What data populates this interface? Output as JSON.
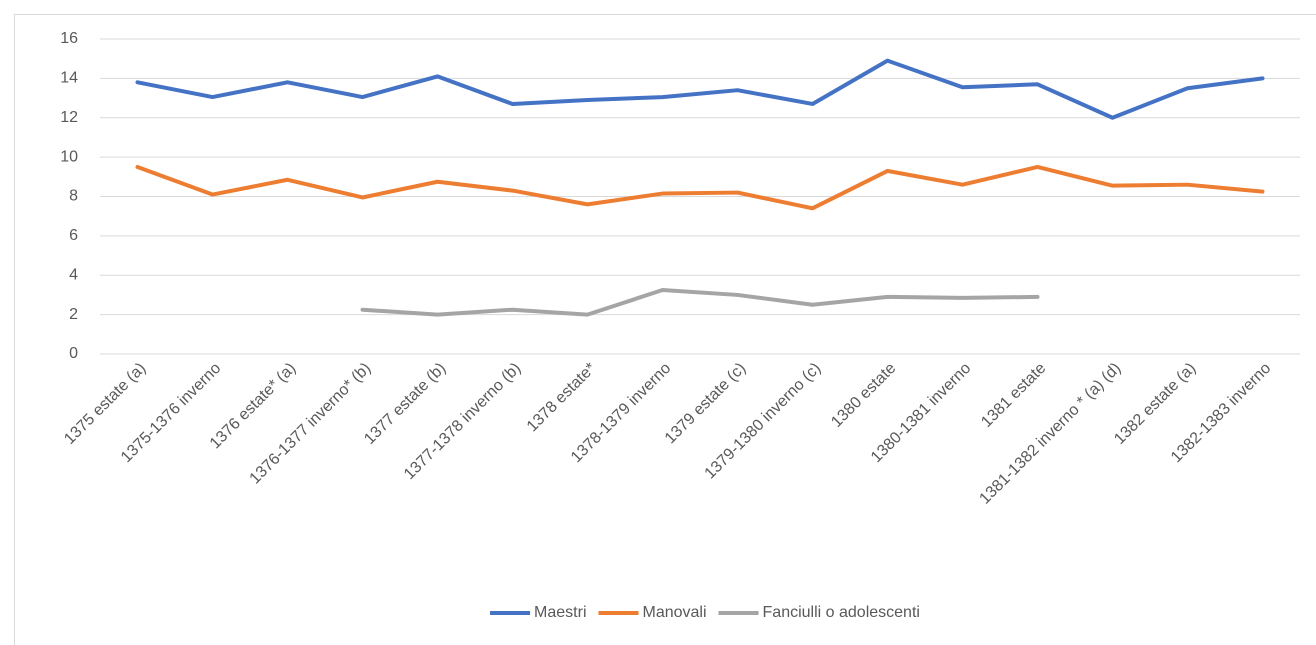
{
  "chart_data": {
    "type": "line",
    "categories": [
      "1375 estate (a)",
      "1375-1376 inverno",
      "1376 estate* (a)",
      "1376-1377 inverno* (b)",
      "1377 estate (b)",
      "1377-1378 inverno (b)",
      "1378 estate*",
      "1378-1379 inverno",
      "1379 estate (c)",
      "1379-1380 inverno (c)",
      "1380 estate",
      "1380-1381 inverno",
      "1381 estate",
      "1381-1382 inverno * (a) (d)",
      "1382 estate (a)",
      "1382-1383 inverno"
    ],
    "series": [
      {
        "name": "Maestri",
        "color": "#4472c4",
        "values": [
          13.8,
          13.05,
          13.8,
          13.05,
          14.1,
          12.7,
          12.9,
          13.05,
          13.4,
          12.7,
          14.9,
          13.55,
          13.7,
          12.0,
          13.5,
          14.0
        ]
      },
      {
        "name": "Manovali",
        "color": "#ed7d31",
        "values": [
          9.5,
          8.1,
          8.85,
          7.95,
          8.75,
          8.3,
          7.6,
          8.15,
          8.2,
          7.4,
          9.3,
          8.6,
          9.5,
          8.55,
          8.6,
          8.25
        ]
      },
      {
        "name": "Fanciulli o adolescenti",
        "color": "#a5a5a5",
        "values": [
          null,
          null,
          null,
          2.25,
          2.0,
          2.25,
          2.0,
          3.25,
          3.0,
          2.5,
          2.9,
          2.85,
          2.9,
          null,
          null,
          null
        ]
      }
    ],
    "ylim": [
      0,
      16
    ],
    "yticks": [
      0,
      2,
      4,
      6,
      8,
      10,
      12,
      14,
      16
    ],
    "grid": true,
    "legend": "bottom"
  }
}
